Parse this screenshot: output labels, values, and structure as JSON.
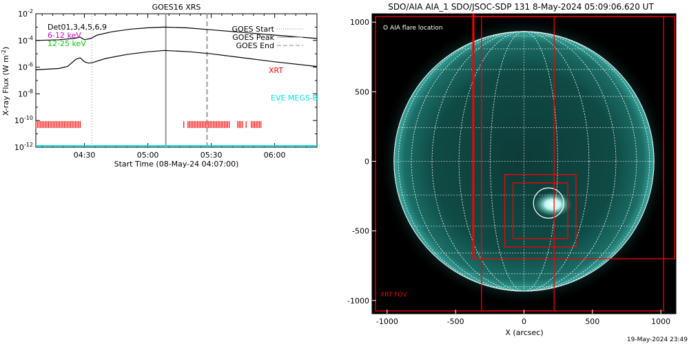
{
  "chart_data": [
    {
      "type": "line",
      "title": "GOES16 XRS",
      "xlabel": "Start Time (08-May-24 04:07:00)",
      "ylabel": "X-ray Flux (W m",
      "ylabel_sup": "-2",
      "ylabel_close": ")",
      "yscale": "log",
      "ylim_exp": [
        -12,
        -2
      ],
      "xlim_min": [
        247,
        380
      ],
      "x_ticks": [
        {
          "label": "04:30",
          "min": 270
        },
        {
          "label": "05:00",
          "min": 300
        },
        {
          "label": "05:30",
          "min": 330
        },
        {
          "label": "06:00",
          "min": 360
        }
      ],
      "y_ticks": [
        {
          "base": "10",
          "exp": "-2"
        },
        {
          "base": "10",
          "exp": "-4"
        },
        {
          "base": "10",
          "exp": "-6"
        },
        {
          "base": "10",
          "exp": "-8"
        },
        {
          "base": "10",
          "exp": "-10"
        },
        {
          "base": "10",
          "exp": "-12"
        }
      ],
      "legend_top_left": [
        "Det01,3,4,5,6,9",
        "6-12 keV",
        "12-25 keV"
      ],
      "legend_top_left_colors": [
        "#000000",
        "#cc00cc",
        "#00cc00"
      ],
      "legend_top_right": [
        "GOES Start",
        "GOES Peak",
        "GOES End"
      ],
      "annotations": {
        "xrt": "XRT",
        "eve": "EVE MEGS-B"
      },
      "goes_start_min": 273.5,
      "goes_peak_min": 308.5,
      "goes_end_min": 328,
      "series": [
        {
          "name": "long",
          "x": [
            247,
            258,
            265,
            268,
            270,
            273,
            276,
            283,
            292,
            300,
            308,
            318,
            330,
            345,
            360,
            380
          ],
          "y": [
            -4.0,
            -3.95,
            -3.85,
            -3.75,
            -3.95,
            -3.85,
            -3.6,
            -3.35,
            -3.15,
            -3.05,
            -3.0,
            -3.05,
            -3.2,
            -3.4,
            -3.6,
            -3.85
          ]
        },
        {
          "name": "short",
          "x": [
            247,
            258,
            262,
            266,
            268,
            270,
            272,
            274,
            280,
            290,
            300,
            308,
            320,
            330,
            345,
            360,
            380
          ],
          "y": [
            -6.2,
            -6.1,
            -5.95,
            -5.4,
            -5.3,
            -5.6,
            -5.7,
            -5.65,
            -5.35,
            -5.05,
            -4.85,
            -4.75,
            -4.85,
            -5.0,
            -5.3,
            -5.6,
            -5.95
          ]
        }
      ],
      "xrt_ranges_min": [
        [
          247,
          268.5
        ],
        [
          319,
          339
        ],
        [
          342.5,
          345
        ],
        [
          349,
          354
        ]
      ],
      "xrt_ticks_min": [
        317,
        346.5
      ],
      "xrt_level_exp": -10.3
    },
    {
      "type": "image",
      "title": "SDO/AIA AIA_1 SDO/JSOC-SDP 131  8-May-2024 05:09:06.620 UT",
      "xlabel": "X (arcsec)",
      "x_ticks": [
        -1000,
        -500,
        0,
        500,
        1000
      ],
      "y_ticks": [
        1000,
        500,
        0,
        -500,
        -1000
      ],
      "xlim": [
        -1110,
        1110
      ],
      "ylim": [
        -1095,
        1060
      ],
      "legend": "O AIA flare location",
      "fov_label": "XRT FOV",
      "flare_location_arcsec": [
        180,
        -300
      ],
      "solar_radius_arcsec": 950,
      "boxes_arcsec": [
        [
          -1085,
          1040,
          1020,
          -1075
        ],
        [
          -370,
          1040,
          1100,
          -700
        ],
        [
          -310,
          1040,
          220,
          -1075
        ],
        [
          -140,
          -95,
          380,
          -615
        ],
        [
          -80,
          -155,
          320,
          -555
        ]
      ],
      "vline_arcsec": -370
    }
  ],
  "footer_timestamp": "19-May-2024 23:49"
}
